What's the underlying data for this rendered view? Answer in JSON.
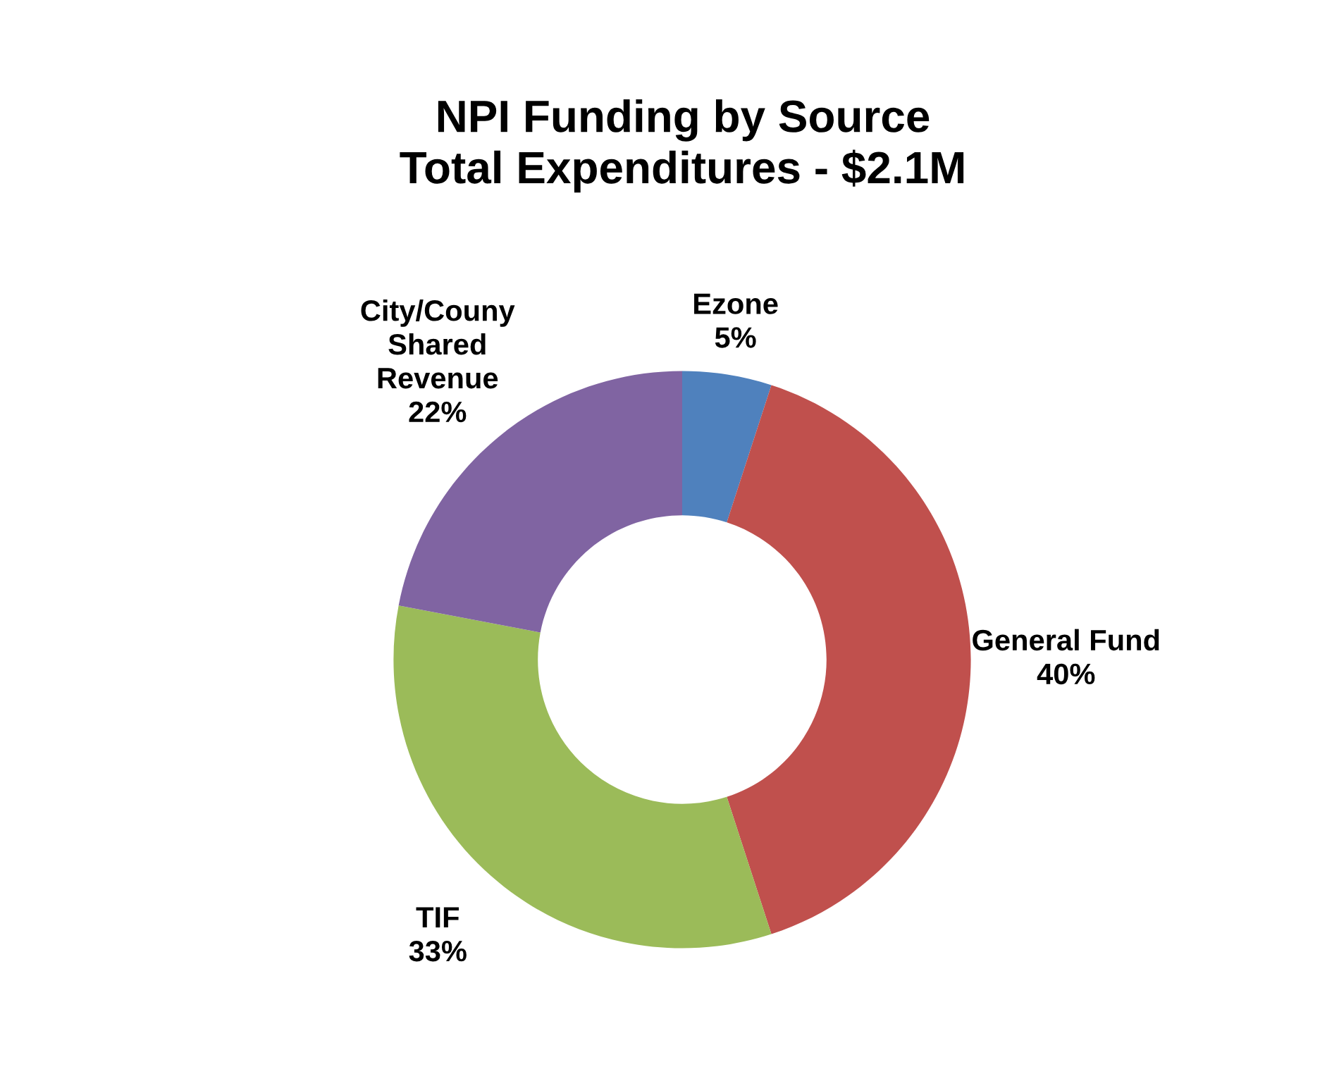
{
  "chart_data": {
    "type": "donut",
    "title": "NPI Funding by Source\nTotal Expenditures - $2.1M",
    "categories": [
      "Ezone",
      "General Fund",
      "TIF",
      "City/Couny Shared Revenue"
    ],
    "values": [
      5,
      40,
      33,
      22
    ],
    "value_labels": [
      "5%",
      "40%",
      "33%",
      "22%"
    ],
    "colors": [
      "#4f81bd",
      "#c0504d",
      "#9bbb59",
      "#8064a2"
    ],
    "legend": false
  }
}
